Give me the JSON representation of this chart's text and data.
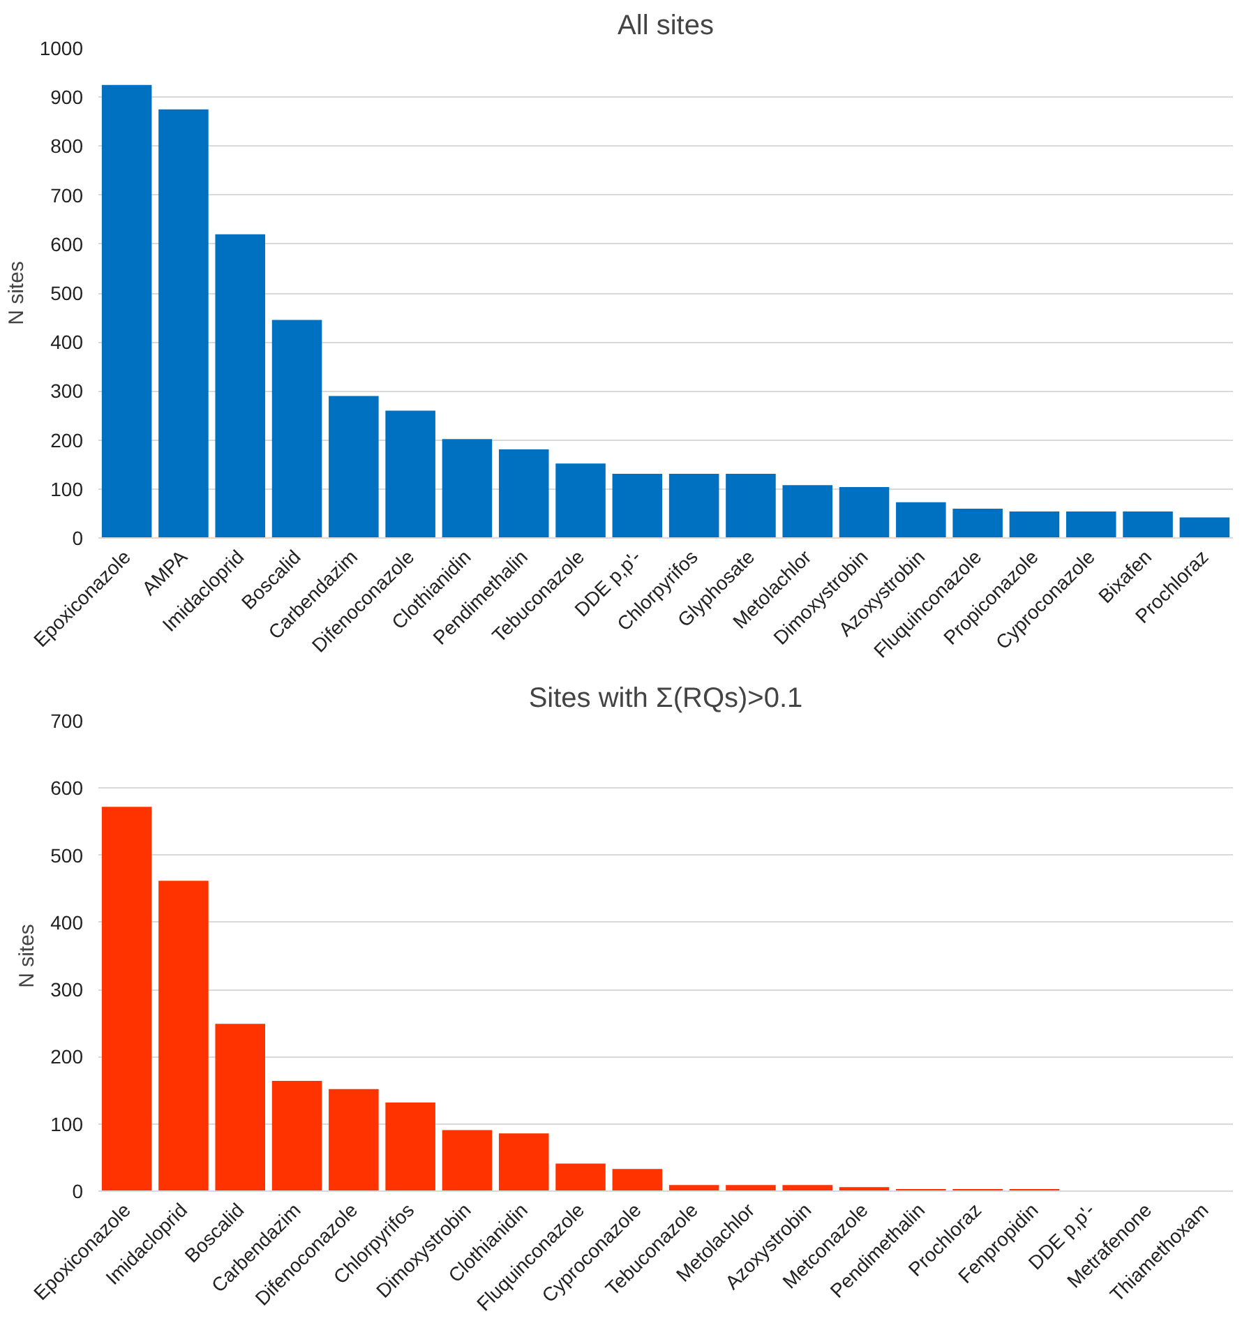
{
  "chart_data": [
    {
      "type": "bar",
      "title": "All sites",
      "ylabel": "N sites",
      "color": "#0070c0",
      "grid": "y",
      "ylim": [
        0,
        1000
      ],
      "yticks": [
        0,
        100,
        200,
        300,
        400,
        500,
        600,
        700,
        800,
        900,
        1000
      ],
      "categories": [
        "Epoxiconazole",
        "AMPA",
        "Imidacloprid",
        "Boscalid",
        "Carbendazim",
        "Difenoconazole",
        "Clothianidin",
        "Pendimethalin",
        "Tebuconazole",
        "DDE p,p'-",
        "Chlorpyrifos",
        "Glyphosate",
        "Metolachlor",
        "Dimoxystrobin",
        "Azoxystrobin",
        "Fluquinconazole",
        "Propiconazole",
        "Cyproconazole",
        "Bixafen",
        "Prochloraz"
      ],
      "values": [
        925,
        875,
        620,
        445,
        290,
        260,
        202,
        181,
        152,
        131,
        131,
        131,
        108,
        104,
        73,
        60,
        54,
        54,
        54,
        42
      ]
    },
    {
      "type": "bar",
      "title": "Sites with Σ(RQs)>0.1",
      "ylabel": "N sites",
      "color": "#ff3300",
      "grid": "y",
      "ylim": [
        0,
        700
      ],
      "yticks": [
        0,
        100,
        200,
        300,
        400,
        500,
        600,
        700
      ],
      "categories": [
        "Epoxiconazole",
        "Imidacloprid",
        "Boscalid",
        "Carbendazim",
        "Difenoconazole",
        "Chlorpyrifos",
        "Dimoxystrobin",
        "Clothianidin",
        "Fluquinconazole",
        "Cyproconazole",
        "Tebuconazole",
        "Metolachlor",
        "Azoxystrobin",
        "Metconazole",
        "Pendimethalin",
        "Prochloraz",
        "Fenpropidin",
        "DDE p,p'-",
        "Metrafenone",
        "Thiamethoxam"
      ],
      "values": [
        572,
        462,
        249,
        164,
        152,
        132,
        91,
        86,
        41,
        33,
        9,
        9,
        9,
        6,
        3,
        3,
        3,
        0,
        0,
        0
      ]
    }
  ]
}
